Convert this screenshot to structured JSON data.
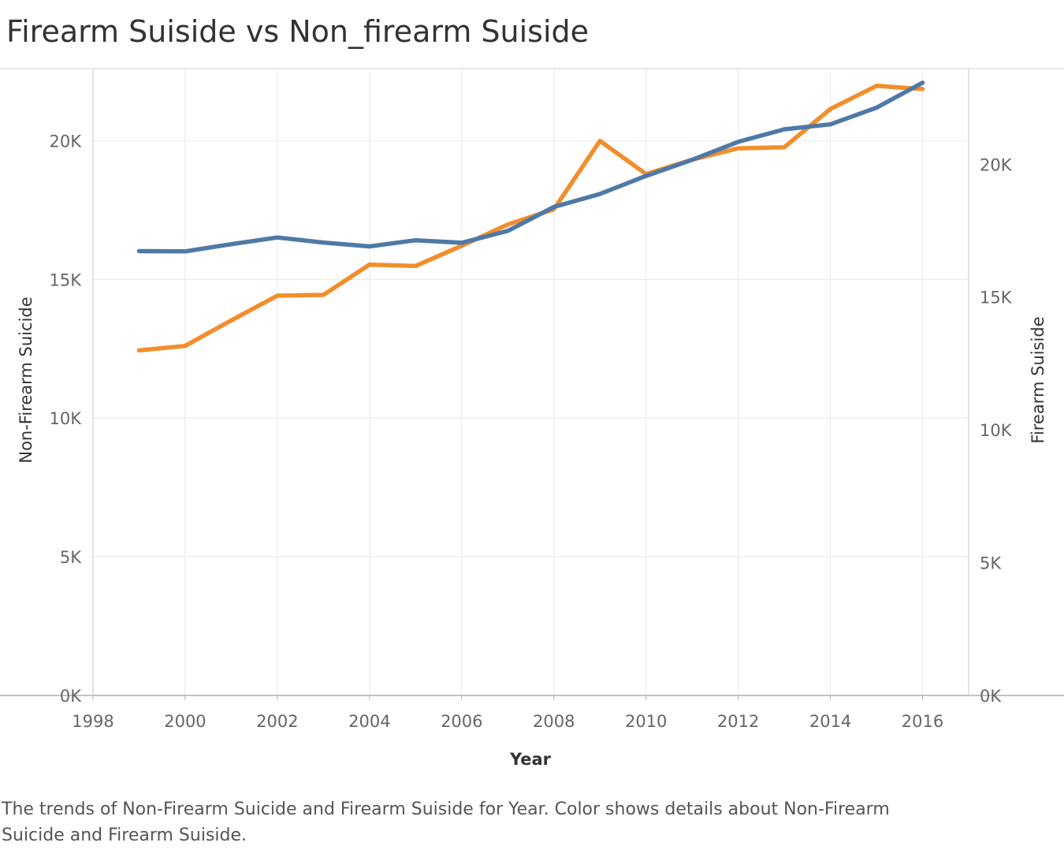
{
  "title": "Firearm Suiside vs Non_firearm Suiside",
  "caption": "The trends of Non-Firearm Suicide and Firearm Suiside for Year.  Color shows details about Non-Firearm Suicide and Firearm Suiside.",
  "chart_data": {
    "type": "line",
    "xlabel": "Year",
    "ylabel_left": "Non-Firearm Suicide",
    "ylabel_right": "Firearm Suiside",
    "xlim": [
      1998,
      2017
    ],
    "ylim_left": [
      0,
      22600
    ],
    "ylim_right": [
      0,
      23600
    ],
    "x_ticks": [
      1998,
      2000,
      2002,
      2004,
      2006,
      2008,
      2010,
      2012,
      2014,
      2016
    ],
    "y_ticks_left": [
      "0K",
      "5K",
      "10K",
      "15K",
      "20K"
    ],
    "y_ticks_right": [
      "0K",
      "5K",
      "10K",
      "15K",
      "20K"
    ],
    "grid": true,
    "x": [
      1999,
      2000,
      2001,
      2002,
      2003,
      2004,
      2005,
      2006,
      2007,
      2008,
      2009,
      2010,
      2011,
      2012,
      2013,
      2014,
      2015,
      2016
    ],
    "series": [
      {
        "name": "Non-Firearm Suicide",
        "axis": "left",
        "color": "#4e79a7",
        "values": [
          16020,
          16010,
          16270,
          16510,
          16330,
          16190,
          16410,
          16320,
          16750,
          17610,
          18080,
          18730,
          19310,
          19960,
          20410,
          20590,
          21190,
          22090
        ]
      },
      {
        "name": "Firearm Suiside",
        "axis": "right",
        "color": "#f28e2b",
        "values": [
          12990,
          13160,
          14120,
          15050,
          15080,
          16220,
          16170,
          16930,
          17730,
          18300,
          20880,
          19630,
          20170,
          20600,
          20640,
          22080,
          22950,
          22830
        ]
      }
    ]
  }
}
